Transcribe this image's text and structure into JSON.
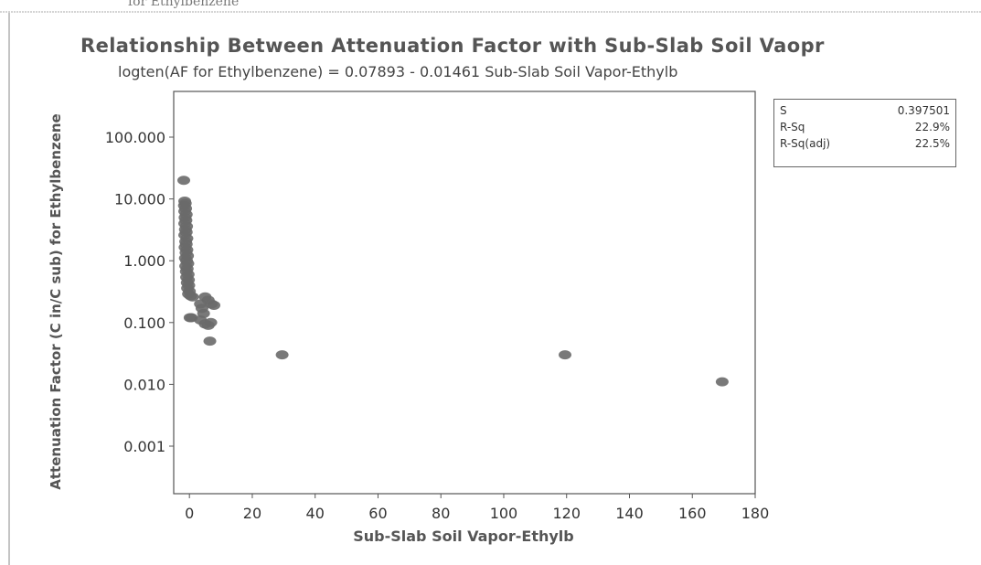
{
  "page": {
    "top_caption": "for Ethylbenzene"
  },
  "chart_data": {
    "type": "scatter",
    "title": "Relationship Between Attenuation Factor with Sub-Slab Soil Vaopr",
    "subtitle": "logten(AF for Ethylbenzene) =  0.07893 - 0.01461 Sub-Slab Soil Vapor-Ethylb",
    "xlabel": "Sub-Slab Soil Vapor-Ethylb",
    "ylabel": "Attenuation Factor (C in/C sub) for Ethylbenzene",
    "xlim": [
      -5,
      180
    ],
    "ylim": [
      0.001,
      100
    ],
    "y_scale": "log",
    "x_ticks": [
      0,
      20,
      40,
      60,
      80,
      100,
      120,
      140,
      160,
      180
    ],
    "x_tick_labels": [
      "0",
      "20",
      "40",
      "60",
      "80",
      "100",
      "120",
      "140",
      "160",
      "180"
    ],
    "y_ticks": [
      0.001,
      0.01,
      0.1,
      1,
      10,
      100
    ],
    "y_tick_labels": [
      "0.001",
      "0.010",
      "0.100",
      "1.000",
      "10.000",
      "100.000"
    ],
    "marker_color": "#6a6a6a",
    "points": [
      {
        "x": -1.8,
        "y": 20
      },
      {
        "x": -1.5,
        "y": 9.2
      },
      {
        "x": -1.3,
        "y": 8.5
      },
      {
        "x": -1.6,
        "y": 7.8
      },
      {
        "x": -1.2,
        "y": 7.0
      },
      {
        "x": -1.5,
        "y": 6.3
      },
      {
        "x": -1.0,
        "y": 5.6
      },
      {
        "x": -1.4,
        "y": 5.0
      },
      {
        "x": -1.1,
        "y": 4.5
      },
      {
        "x": -1.5,
        "y": 4.0
      },
      {
        "x": -0.9,
        "y": 3.6
      },
      {
        "x": -1.3,
        "y": 3.2
      },
      {
        "x": -1.0,
        "y": 2.9
      },
      {
        "x": -1.5,
        "y": 2.6
      },
      {
        "x": -0.8,
        "y": 2.3
      },
      {
        "x": -1.2,
        "y": 2.05
      },
      {
        "x": -1.0,
        "y": 1.85
      },
      {
        "x": -1.4,
        "y": 1.65
      },
      {
        "x": -0.8,
        "y": 1.5
      },
      {
        "x": -1.1,
        "y": 1.35
      },
      {
        "x": -0.6,
        "y": 1.2
      },
      {
        "x": -1.3,
        "y": 1.1
      },
      {
        "x": -0.9,
        "y": 1.0
      },
      {
        "x": -0.5,
        "y": 0.9
      },
      {
        "x": -1.2,
        "y": 0.82
      },
      {
        "x": -0.7,
        "y": 0.74
      },
      {
        "x": -1.0,
        "y": 0.67
      },
      {
        "x": -0.4,
        "y": 0.6
      },
      {
        "x": -0.9,
        "y": 0.54
      },
      {
        "x": -0.3,
        "y": 0.49
      },
      {
        "x": -0.7,
        "y": 0.44
      },
      {
        "x": -0.2,
        "y": 0.4
      },
      {
        "x": -0.6,
        "y": 0.36
      },
      {
        "x": 0.0,
        "y": 0.32
      },
      {
        "x": -0.3,
        "y": 0.29
      },
      {
        "x": 0.4,
        "y": 0.27
      },
      {
        "x": 1.0,
        "y": 0.26
      },
      {
        "x": 0.2,
        "y": 0.12
      },
      {
        "x": 0.6,
        "y": 0.12
      },
      {
        "x": 3.5,
        "y": 0.2
      },
      {
        "x": 5.0,
        "y": 0.26
      },
      {
        "x": 6.0,
        "y": 0.23
      },
      {
        "x": 4.0,
        "y": 0.17
      },
      {
        "x": 7.0,
        "y": 0.2
      },
      {
        "x": 7.8,
        "y": 0.19
      },
      {
        "x": 4.5,
        "y": 0.14
      },
      {
        "x": 3.5,
        "y": 0.11
      },
      {
        "x": 5.0,
        "y": 0.095
      },
      {
        "x": 6.0,
        "y": 0.09
      },
      {
        "x": 6.8,
        "y": 0.1
      },
      {
        "x": 6.5,
        "y": 0.05
      },
      {
        "x": 29.5,
        "y": 0.03
      },
      {
        "x": 119.5,
        "y": 0.03
      },
      {
        "x": 169.5,
        "y": 0.011
      }
    ],
    "stats": [
      {
        "label": "S",
        "value": "0.397501"
      },
      {
        "label": "R-Sq",
        "value": "22.9%"
      },
      {
        "label": "R-Sq(adj)",
        "value": "22.5%"
      }
    ]
  }
}
